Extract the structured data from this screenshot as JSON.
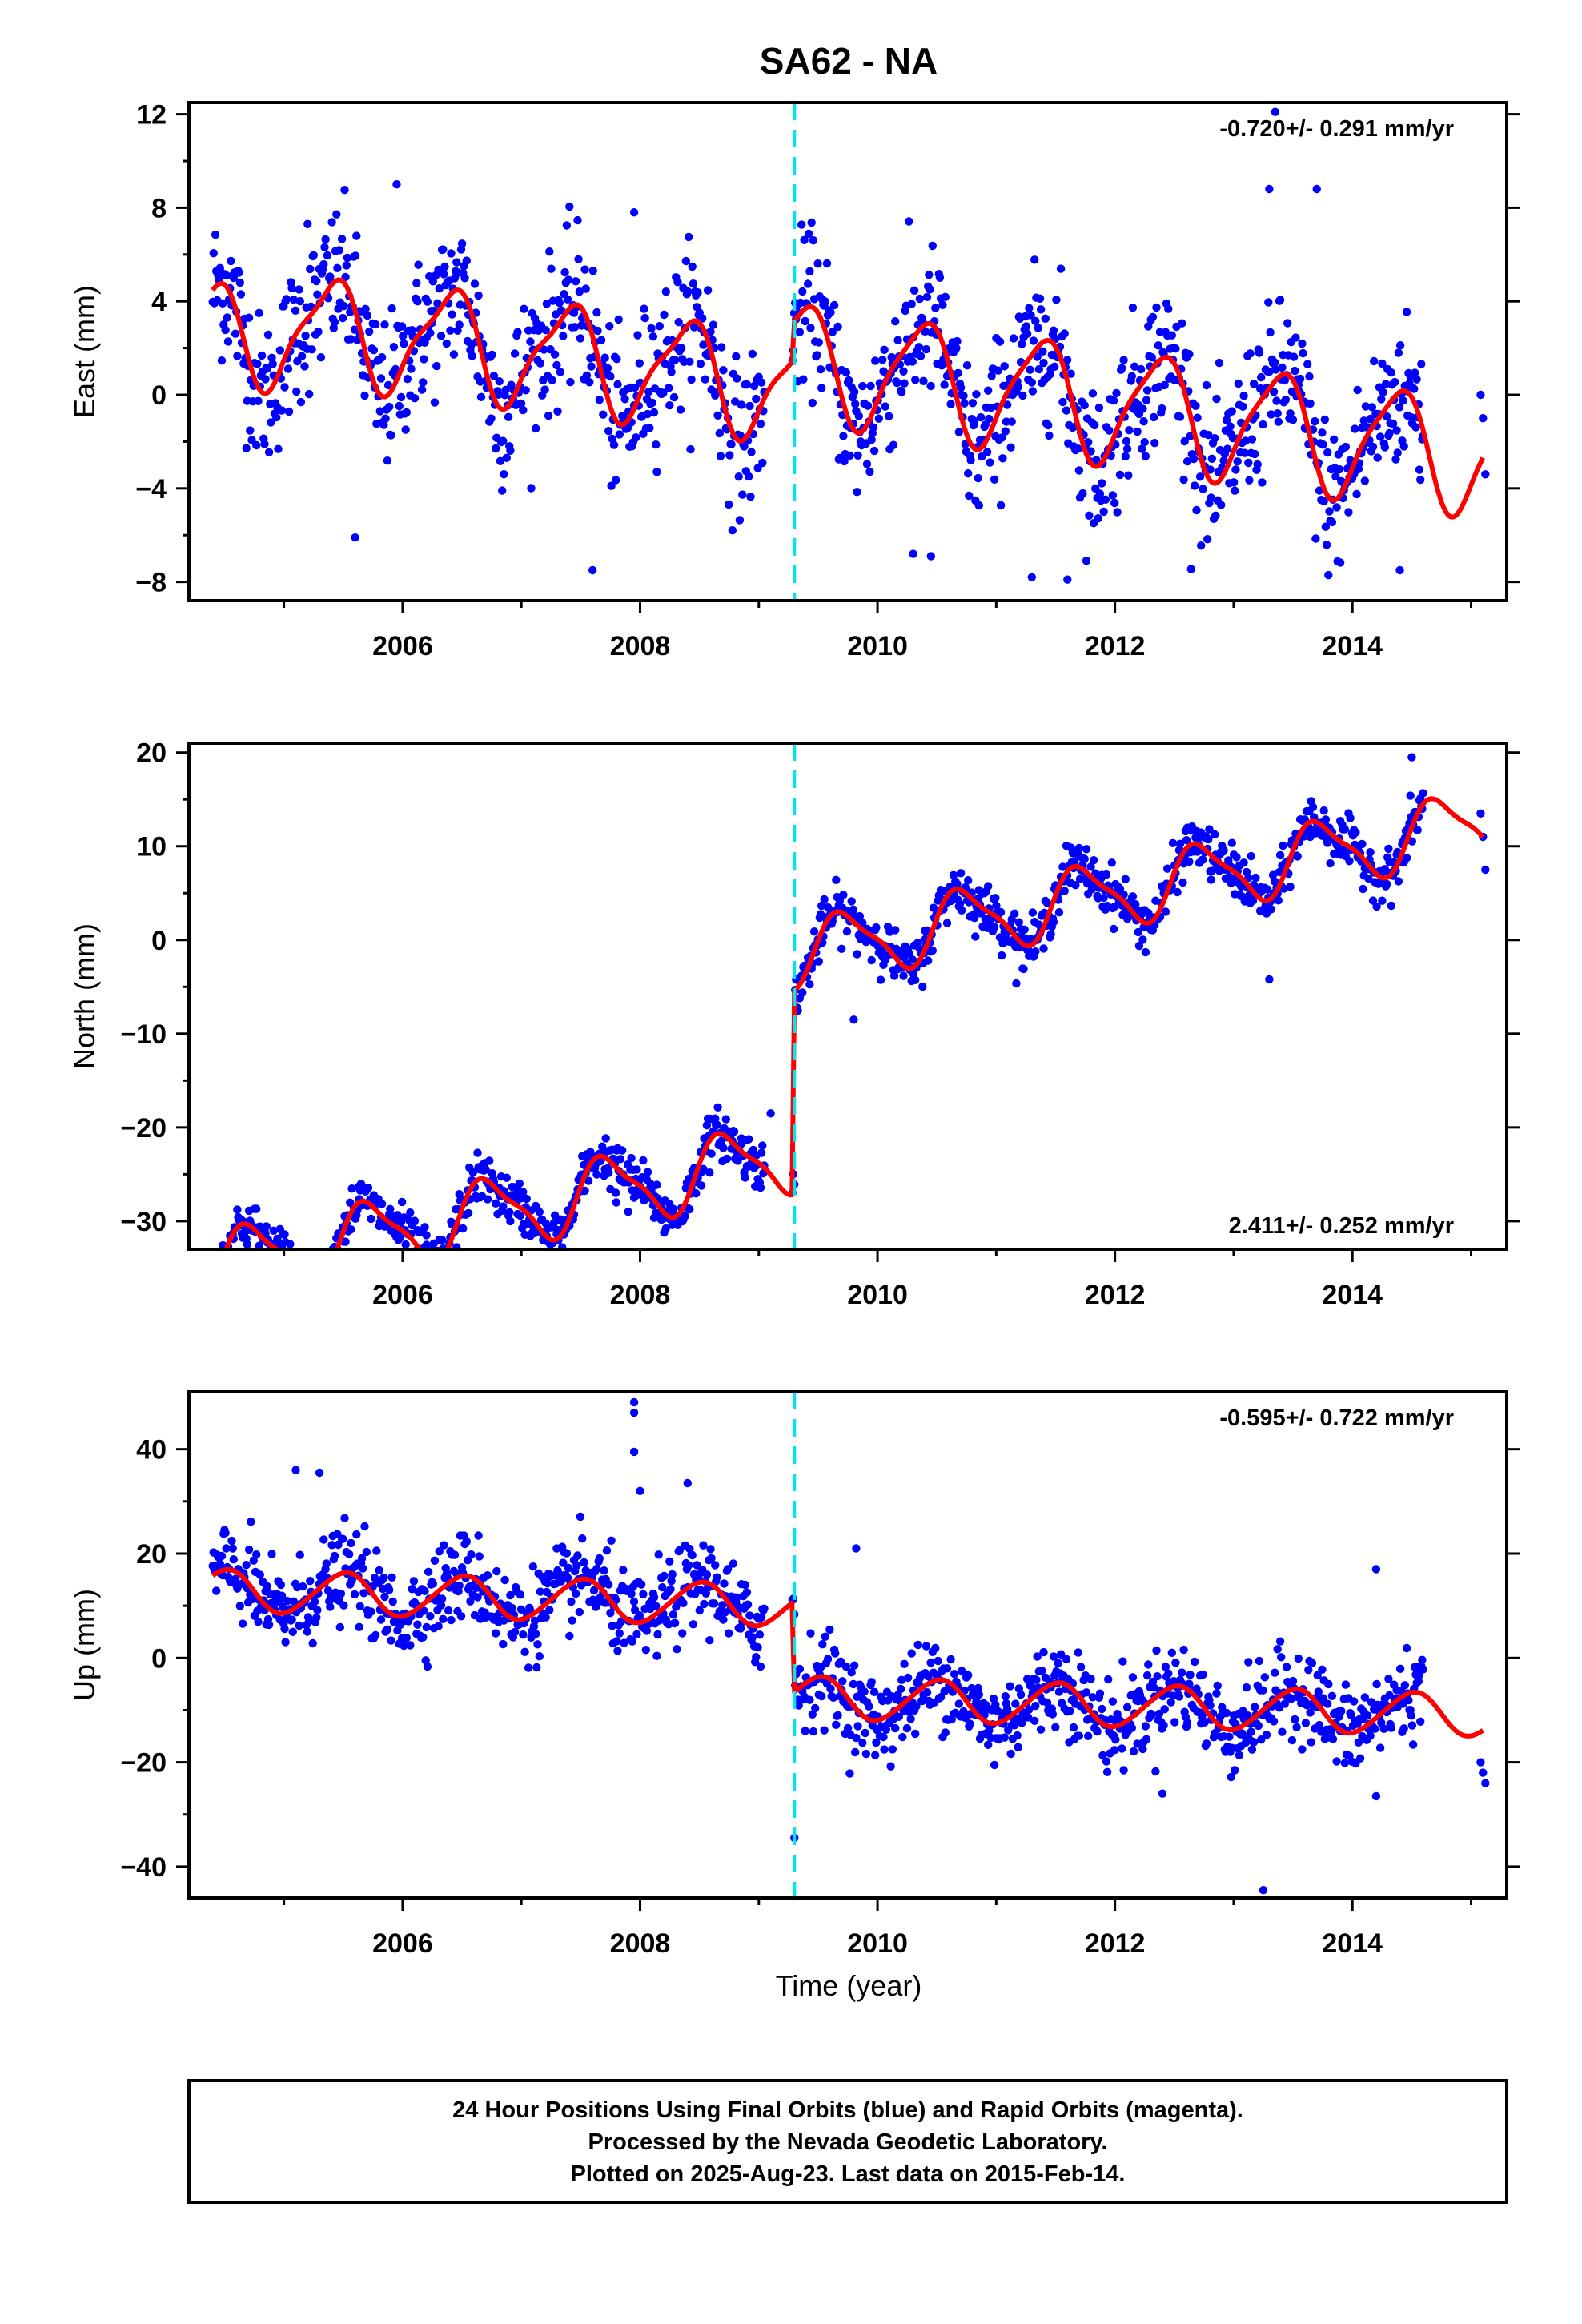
{
  "title": "SA62 - NA",
  "xlabel": "Time (year)",
  "footer": {
    "line1": "24 Hour Positions Using Final Orbits (blue) and Rapid Orbits (magenta).",
    "line2": "Processed by the Nevada Geodetic Laboratory.",
    "line3": "Plotted on 2025-Aug-23. Last data on 2015-Feb-14."
  },
  "colors": {
    "points": "#0000ff",
    "model": "#ff0000",
    "offset_line": "#00e5ee",
    "axis": "#000000"
  },
  "chart_data": [
    {
      "type": "scatter",
      "component": "east",
      "ylabel": "East (mm)",
      "rate_text": "-0.720+/- 0.291 mm/yr",
      "rate_position": "top-right",
      "xlim": [
        2004.2,
        2015.3
      ],
      "ylim": [
        -8.8,
        12.5
      ],
      "yticks": [
        12,
        8,
        4,
        0,
        -4,
        -8
      ],
      "ytick_labels": [
        "12",
        "8",
        "4",
        "0",
        "−4",
        "−8"
      ],
      "xticks": [
        2006,
        2008,
        2010,
        2012,
        2014
      ],
      "xtick_labels": [
        "2006",
        "2008",
        "2010",
        "2012",
        "2014"
      ],
      "offset_epoch": 2009.3,
      "data_start": 2004.4,
      "data_gap": [
        2009.05,
        2009.28
      ],
      "data_end": 2014.6,
      "trailing_points": [
        [
          2015.08,
          0.0
        ],
        [
          2015.1,
          -1.0
        ],
        [
          2015.12,
          -3.4
        ]
      ],
      "outliers": [
        [
          2005.6,
          -6.1
        ],
        [
          2005.95,
          9.0
        ],
        [
          2005.2,
          7.3
        ],
        [
          2007.6,
          -7.5
        ],
        [
          2007.95,
          7.8
        ],
        [
          2010.3,
          -6.8
        ],
        [
          2010.45,
          -6.9
        ],
        [
          2011.3,
          -7.8
        ],
        [
          2011.6,
          -7.9
        ],
        [
          2013.35,
          12.1
        ],
        [
          2013.7,
          8.8
        ],
        [
          2013.3,
          8.8
        ],
        [
          2014.4,
          -7.5
        ]
      ],
      "model": {
        "pre": {
          "intercept": 0.3,
          "trend": -0.72,
          "annual_amp": 2.2,
          "annual_phase": 5.4,
          "semi_amp": 0.6,
          "semi_phase": 1.0,
          "bias_start": -1.4,
          "bias_decay": 0.9
        },
        "post": {
          "intercept": 1.5,
          "trend": -0.72,
          "annual_amp": 2.4,
          "annual_phase": 5.5,
          "semi_amp": 0.5,
          "semi_phase": 1.1,
          "bias_start": 0.0,
          "bias_decay": 1.0
        }
      },
      "scatter_sigma": 1.6
    },
    {
      "type": "scatter",
      "component": "north",
      "ylabel": "North (mm)",
      "rate_text": "2.411+/- 0.252 mm/yr",
      "rate_position": "bottom-right",
      "xlim": [
        2004.2,
        2015.3
      ],
      "ylim": [
        -33,
        21
      ],
      "yticks": [
        20,
        10,
        0,
        -10,
        -20,
        -30
      ],
      "ytick_labels": [
        "20",
        "10",
        "0",
        "−10",
        "−20",
        "−30"
      ],
      "xticks": [
        2006,
        2008,
        2010,
        2012,
        2014
      ],
      "xtick_labels": [
        "2006",
        "2008",
        "2010",
        "2012",
        "2014"
      ],
      "offset_epoch": 2009.3,
      "data_start": 2004.4,
      "data_gap": [
        2009.05,
        2009.28
      ],
      "data_end": 2014.6,
      "trailing_points": [
        [
          2015.08,
          13.5
        ],
        [
          2015.1,
          11.0
        ],
        [
          2015.12,
          7.5
        ]
      ],
      "outliers": [
        [
          2006.2,
          -31.5
        ],
        [
          2005.9,
          -30.2
        ],
        [
          2007.8,
          -28.0
        ],
        [
          2007.9,
          -29.0
        ],
        [
          2008.1,
          -26.4
        ],
        [
          2009.1,
          -18.5
        ],
        [
          2009.8,
          -8.5
        ],
        [
          2010.4,
          1.0
        ],
        [
          2013.3,
          -4.2
        ],
        [
          2014.5,
          19.5
        ]
      ],
      "model": {
        "pre": {
          "intercept": -23.0,
          "trend": 2.41,
          "annual_amp": 3.6,
          "annual_phase": 3.3,
          "semi_amp": 1.0,
          "semi_phase": 0.5,
          "bias_start": 0.0,
          "bias_decay": 1.0
        },
        "post": {
          "intercept": -1.5,
          "trend": 2.41,
          "annual_amp": 3.4,
          "annual_phase": 3.3,
          "semi_amp": 0.9,
          "semi_phase": 0.5,
          "bias_start": 0.0,
          "bias_decay": 1.0
        }
      },
      "scatter_sigma": 1.3
    },
    {
      "type": "scatter",
      "component": "up",
      "ylabel": "Up (mm)",
      "rate_text": "-0.595+/- 0.722 mm/yr",
      "rate_position": "top-right",
      "xlim": [
        2004.2,
        2015.3
      ],
      "ylim": [
        -46,
        51
      ],
      "yticks": [
        40,
        20,
        0,
        -20,
        -40
      ],
      "ytick_labels": [
        "40",
        "20",
        "0",
        "−20",
        "−40"
      ],
      "xticks": [
        2006,
        2008,
        2010,
        2012,
        2014
      ],
      "xtick_labels": [
        "2006",
        "2008",
        "2010",
        "2012",
        "2014"
      ],
      "offset_epoch": 2009.3,
      "data_start": 2004.4,
      "data_gap": [
        2009.05,
        2009.28
      ],
      "data_end": 2014.6,
      "trailing_points": [
        [
          2015.08,
          -20.0
        ],
        [
          2015.1,
          -22.0
        ],
        [
          2015.12,
          -24.0
        ]
      ],
      "outliers": [
        [
          2005.1,
          36.0
        ],
        [
          2005.3,
          35.5
        ],
        [
          2007.95,
          49.0
        ],
        [
          2007.95,
          47.0
        ],
        [
          2007.95,
          39.5
        ],
        [
          2008.0,
          32.0
        ],
        [
          2008.4,
          33.5
        ],
        [
          2009.82,
          21.0
        ],
        [
          2009.3,
          -34.5
        ],
        [
          2012.4,
          -26.0
        ],
        [
          2013.25,
          -44.5
        ],
        [
          2014.2,
          -26.5
        ],
        [
          2014.2,
          17.0
        ]
      ],
      "model": {
        "pre": {
          "intercept": 10.0,
          "trend": -0.6,
          "annual_amp": 4.0,
          "annual_phase": 4.7,
          "semi_amp": 0.4,
          "semi_phase": 0.0,
          "bias_start": 0.0,
          "bias_decay": 1.0
        },
        "post": {
          "intercept": -7.5,
          "trend": -0.6,
          "annual_amp": 4.0,
          "annual_phase": 4.7,
          "semi_amp": 0.4,
          "semi_phase": 0.0,
          "bias_start": 0.0,
          "bias_decay": 1.0
        }
      },
      "scatter_sigma": 4.2
    }
  ]
}
